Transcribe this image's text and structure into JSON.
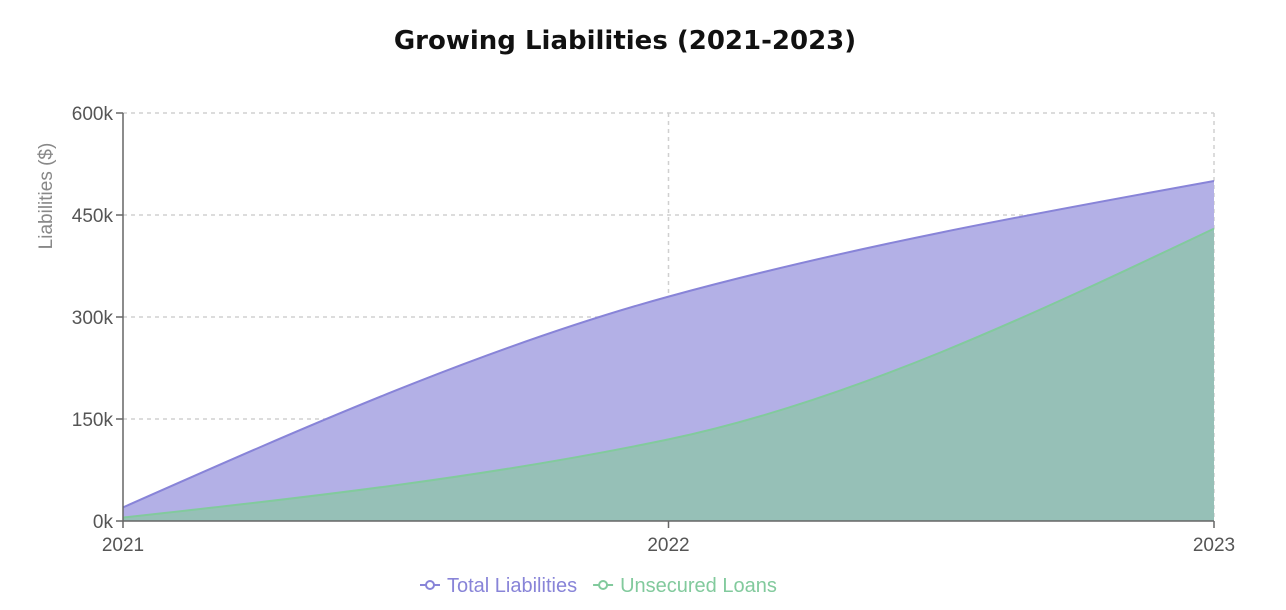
{
  "chart_data": {
    "type": "area",
    "title": "Growing Liabilities (2021-2023)",
    "xlabel": "",
    "ylabel": "Liabilities ($)",
    "x": [
      "2021",
      "2022",
      "2023"
    ],
    "ylim": [
      0,
      600000
    ],
    "yticks": [
      0,
      150000,
      300000,
      450000,
      600000
    ],
    "ytick_labels": [
      "0k",
      "150k",
      "300k",
      "450k",
      "600k"
    ],
    "grid": true,
    "legend_position": "bottom-center",
    "series": [
      {
        "name": "Total Liabilities",
        "values": [
          20000,
          330000,
          500000
        ],
        "color": "#8884d8",
        "fill": "#b3b0e6"
      },
      {
        "name": "Unsecured Loans",
        "values": [
          5000,
          120000,
          430000
        ],
        "color": "#82ca9d",
        "fill": "#96c0b7"
      }
    ]
  }
}
